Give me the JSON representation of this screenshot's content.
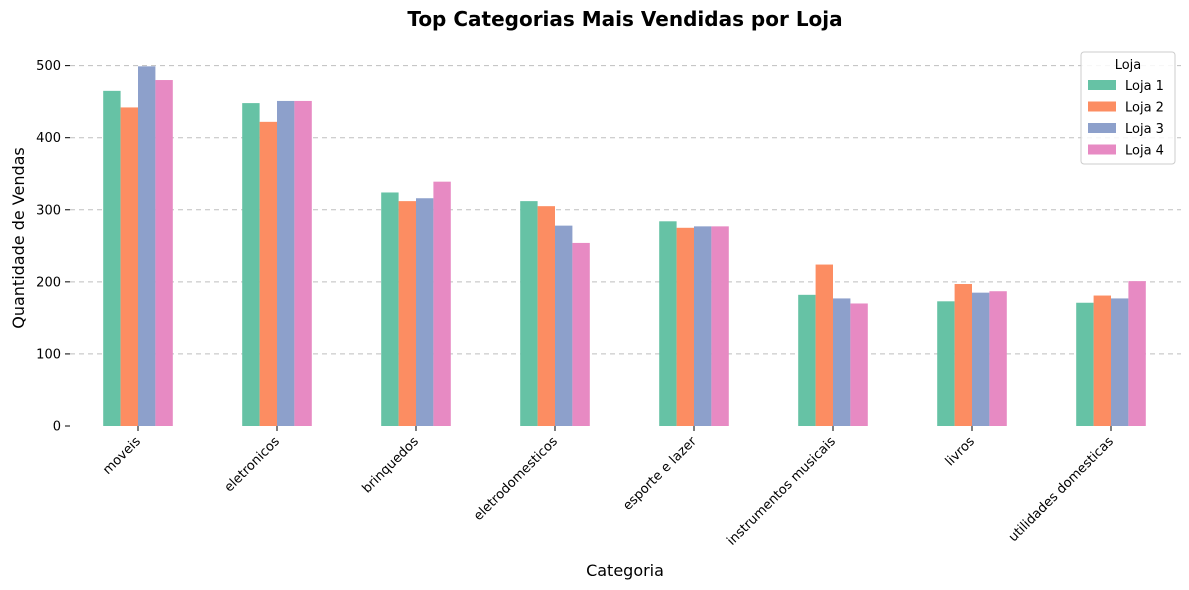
{
  "chart_data": {
    "type": "bar",
    "title": "Top Categorias Mais Vendidas por Loja",
    "xlabel": "Categoria",
    "ylabel": "Quantidade de Vendas",
    "ylim": [
      0,
      530
    ],
    "yticks": [
      0,
      100,
      200,
      300,
      400,
      500
    ],
    "grid": "y-dashed",
    "legend": {
      "title": "Loja",
      "placement": "top-right"
    },
    "categories": [
      "moveis",
      "eletronicos",
      "brinquedos",
      "eletrodomesticos",
      "esporte e lazer",
      "instrumentos musicais",
      "livros",
      "utilidades domesticas"
    ],
    "series": [
      {
        "name": "Loja 1",
        "color": "#66c2a5",
        "values": [
          465,
          448,
          324,
          312,
          284,
          182,
          173,
          171
        ]
      },
      {
        "name": "Loja 2",
        "color": "#fc8d62",
        "values": [
          442,
          422,
          312,
          305,
          275,
          224,
          197,
          181
        ]
      },
      {
        "name": "Loja 3",
        "color": "#8da0cb",
        "values": [
          499,
          451,
          316,
          278,
          277,
          177,
          185,
          177
        ]
      },
      {
        "name": "Loja 4",
        "color": "#e78ac3",
        "values": [
          480,
          451,
          339,
          254,
          277,
          170,
          187,
          201
        ]
      }
    ]
  }
}
